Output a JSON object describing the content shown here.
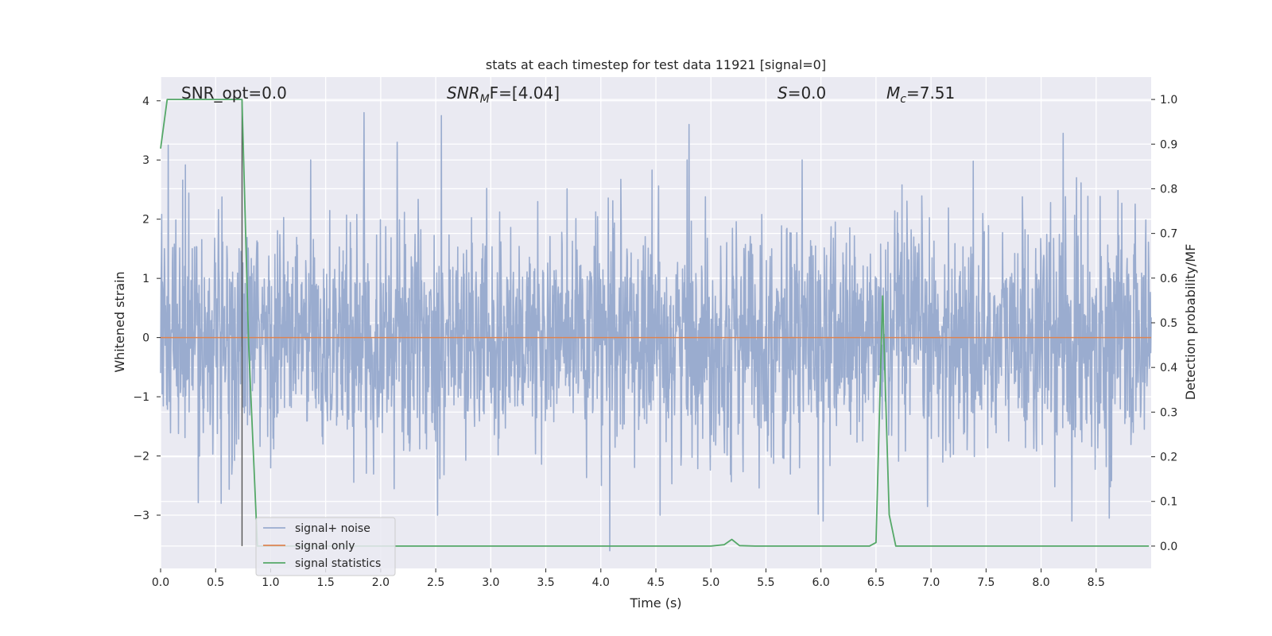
{
  "chart_data": {
    "type": "line",
    "title": "stats at each timestep for test data 11921 [signal=0]",
    "xlabel": "Time (s)",
    "ylabel": "Whitened strain",
    "y2label": "Detection probability/MF",
    "xlim": [
      0.0,
      9.0
    ],
    "ylim": [
      -3.9,
      4.4
    ],
    "y2lim": [
      -0.05,
      1.05
    ],
    "xticks": [
      "0.0",
      "0.5",
      "1.0",
      "1.5",
      "2.0",
      "2.5",
      "3.0",
      "3.5",
      "4.0",
      "4.5",
      "5.0",
      "5.5",
      "6.0",
      "6.5",
      "7.0",
      "7.5",
      "8.0",
      "8.5"
    ],
    "yticks": [
      "−3",
      "−2",
      "−1",
      "0",
      "1",
      "2",
      "3",
      "4"
    ],
    "y2ticks": [
      "0.0",
      "0.1",
      "0.2",
      "0.3",
      "0.4",
      "0.5",
      "0.6",
      "0.7",
      "0.8",
      "0.9",
      "1.0"
    ],
    "grid": true,
    "legend_position": "lower-left",
    "colors": {
      "background": "#eaeaf2",
      "grid": "#ffffff",
      "noise": "#9aaccf",
      "signal_only": "#dd8452",
      "statistics": "#55a868",
      "marker": "#555555"
    },
    "annotations": {
      "snr_opt": "SNR_opt=0.0",
      "snr_mf_main": "SNR",
      "snr_mf_sub": "M",
      "snr_mf_rest": "F=[4.04]",
      "s_main": "S",
      "s_rest": "=0.0",
      "mc_main": "M",
      "mc_sub": "c",
      "mc_rest": "=7.51"
    },
    "marker_line_x": 0.74,
    "series": [
      {
        "name": "signal+ noise",
        "description": "whitened strain noise, approximately Gaussian with sigma ~1",
        "notable_spikes": [
          {
            "x": 0.07,
            "y": 3.25
          },
          {
            "x": 0.55,
            "y": -2.8
          },
          {
            "x": 1.85,
            "y": 3.8
          },
          {
            "x": 2.15,
            "y": 3.3
          },
          {
            "x": 2.55,
            "y": 3.75
          },
          {
            "x": 4.08,
            "y": -3.6
          },
          {
            "x": 4.8,
            "y": 3.6
          },
          {
            "x": 6.02,
            "y": -3.1
          },
          {
            "x": 8.2,
            "y": 3.45
          },
          {
            "x": 8.28,
            "y": -3.1
          },
          {
            "x": 8.62,
            "y": -3.05
          }
        ]
      },
      {
        "name": "signal only",
        "x": [
          0.0,
          9.0
        ],
        "y": [
          0.0,
          0.0
        ]
      },
      {
        "name": "signal statistics",
        "axis": "right",
        "x": [
          0.0,
          0.06,
          0.1,
          0.2,
          0.3,
          0.4,
          0.5,
          0.6,
          0.7,
          0.74,
          0.8,
          0.88,
          1.0,
          1.5,
          2.0,
          2.5,
          3.0,
          3.5,
          4.0,
          4.5,
          5.0,
          5.12,
          5.19,
          5.26,
          5.4,
          6.0,
          6.44,
          6.5,
          6.56,
          6.62,
          6.68,
          7.0,
          7.5,
          8.0,
          8.5,
          8.98
        ],
        "y": [
          0.89,
          1.0,
          1.0,
          1.0,
          1.0,
          1.0,
          1.0,
          1.0,
          1.0,
          1.0,
          0.45,
          0.0,
          0.0,
          0.0,
          0.0,
          0.0,
          0.0,
          0.0,
          0.0,
          0.0,
          0.0,
          0.003,
          0.015,
          0.001,
          0.0,
          0.0,
          0.0,
          0.008,
          0.56,
          0.07,
          0.0,
          0.0,
          0.0,
          0.0,
          0.0,
          0.0
        ]
      }
    ]
  }
}
